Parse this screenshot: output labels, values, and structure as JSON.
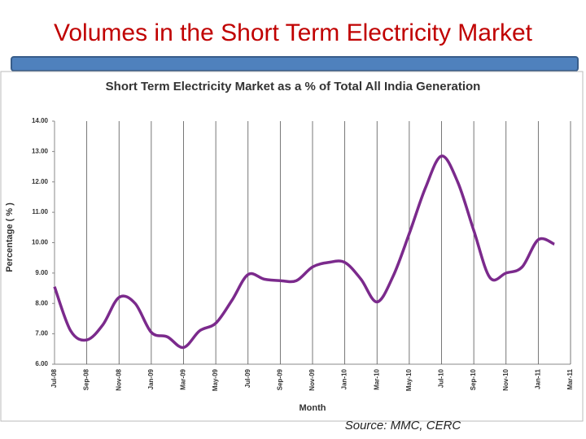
{
  "slide_title": "Volumes in the Short Term Electricity Market",
  "source": "Source: MMC, CERC",
  "chart_data": {
    "type": "line",
    "title": "Short Term Electricity Market as a %  of Total All India Generation",
    "x_label": "Month",
    "y_label": "Percentage ( % )",
    "categories": [
      "Jul-08",
      null,
      "Sep-08",
      null,
      "Nov-08",
      null,
      "Jan-09",
      null,
      "Mar-09",
      null,
      "May-09",
      null,
      "Jul-09",
      null,
      "Sep-09",
      null,
      "Nov-09",
      null,
      "Jan-10",
      null,
      "Mar-10",
      null,
      "May-10",
      null,
      "Jul-10",
      null,
      "Sep-10",
      null,
      "Nov-10",
      null,
      "Jan-11",
      null,
      "Mar-11"
    ],
    "series": [
      {
        "name": "Short Term Electricity Market share",
        "color": "#7b2a8c",
        "values": [
          8.55,
          7.1,
          6.8,
          7.3,
          8.2,
          8.0,
          7.05,
          6.9,
          6.55,
          7.1,
          7.35,
          8.1,
          8.95,
          8.8,
          8.75,
          8.75,
          9.2,
          9.35,
          9.35,
          8.8,
          8.05,
          8.9,
          10.3,
          11.8,
          12.85,
          12.0,
          10.4,
          8.85,
          9.0,
          9.2,
          10.1,
          9.95,
          null
        ]
      }
    ],
    "ylim": [
      6,
      14
    ],
    "yticks": [
      {
        "value": 6,
        "label": "6.00"
      },
      {
        "value": 7,
        "label": "7.00"
      },
      {
        "value": 8,
        "label": "8.00"
      },
      {
        "value": 9,
        "label": "9.00"
      },
      {
        "value": 10,
        "label": "10.00"
      },
      {
        "value": 11,
        "label": "11.00"
      },
      {
        "value": 12,
        "label": "12.00"
      },
      {
        "value": 13,
        "label": "13.00"
      },
      {
        "value": 14,
        "label": "14.00"
      }
    ],
    "x_grid": true
  }
}
